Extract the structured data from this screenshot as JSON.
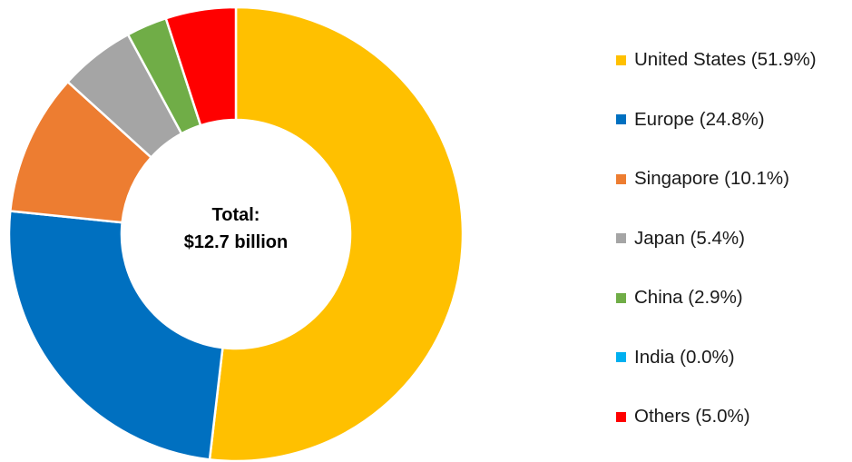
{
  "chart_data": {
    "type": "pie",
    "style": "donut",
    "center_label": [
      "Total:",
      "$12.7 billion"
    ],
    "slices": [
      {
        "label": "United States (51.9%)",
        "value": 51.9,
        "color": "#FFC000"
      },
      {
        "label": "Europe (24.8%)",
        "value": 24.8,
        "color": "#0070C0"
      },
      {
        "label": "Singapore (10.1%)",
        "value": 10.1,
        "color": "#ED7D31"
      },
      {
        "label": "Japan (5.4%)",
        "value": 5.4,
        "color": "#A5A5A5"
      },
      {
        "label": "China (2.9%)",
        "value": 2.9,
        "color": "#70AD47"
      },
      {
        "label": "India (0.0%)",
        "value": 0.0,
        "color": "#00B0F0"
      },
      {
        "label": "Others (5.0%)",
        "value": 5.0,
        "color": "#FF0000"
      }
    ],
    "legend_position": "right"
  }
}
